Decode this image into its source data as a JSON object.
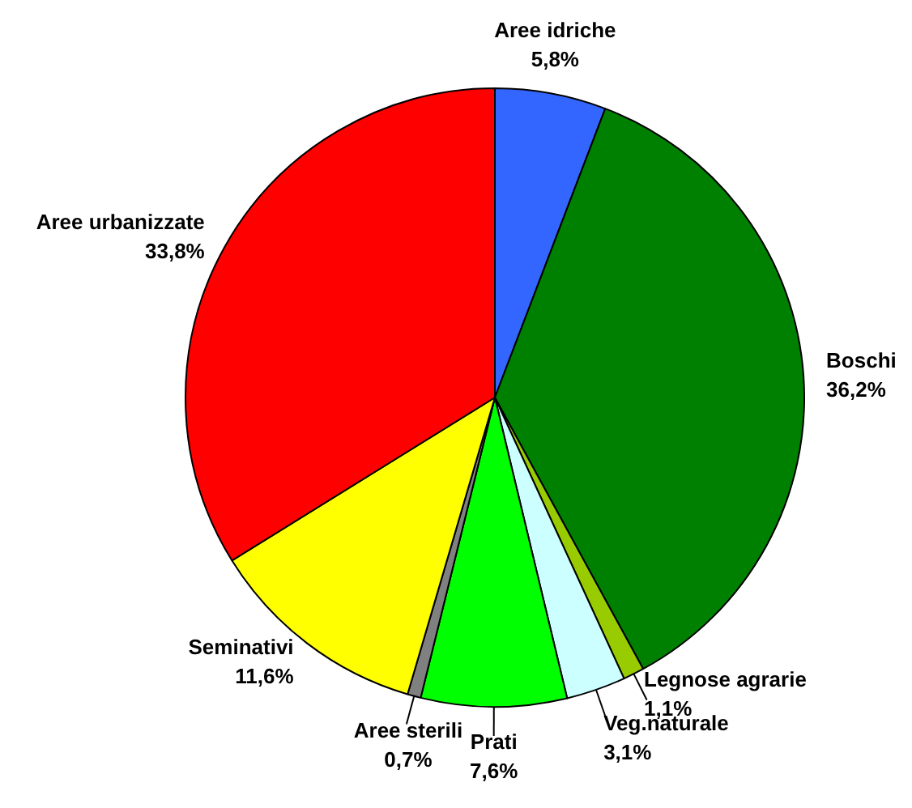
{
  "chart_data": {
    "type": "pie",
    "categories": [
      "Aree idriche",
      "Boschi",
      "Legnose agrarie",
      "Veg.naturale",
      "Prati",
      "Aree sterili",
      "Seminativi",
      "Aree urbanizzate"
    ],
    "values": [
      5.8,
      36.2,
      1.1,
      3.1,
      7.6,
      0.7,
      11.6,
      33.8
    ],
    "colors": [
      "#3366ff",
      "#008000",
      "#99cc00",
      "#ccffff",
      "#00ff00",
      "#808080",
      "#ffff00",
      "#ff0000"
    ],
    "value_labels": [
      "5,8%",
      "36,2%",
      "1,1%",
      "3,1%",
      "7,6%",
      "0,7%",
      "11,6%",
      "33,8%"
    ]
  }
}
